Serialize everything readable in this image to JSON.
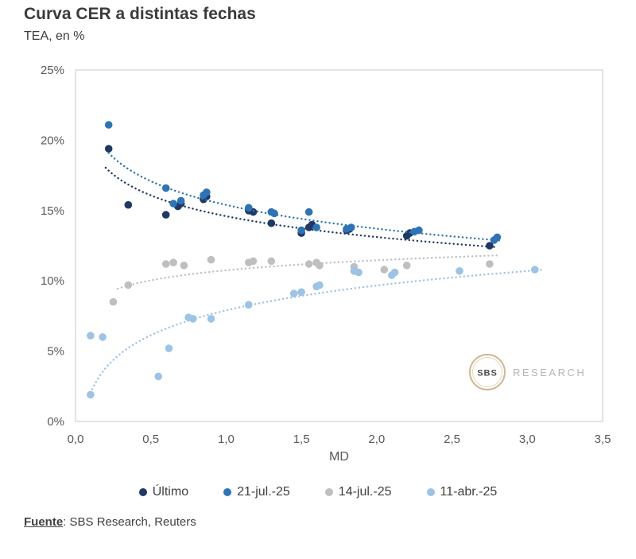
{
  "title": "Curva CER a distintas fechas",
  "subtitle": "TEA, en %",
  "footer": {
    "label": "Fuente",
    "text": ": SBS Research, Reuters"
  },
  "watermark": {
    "badge": "SBS",
    "text": "RESEARCH"
  },
  "chart_data": {
    "type": "scatter",
    "title": "Curva CER a distintas fechas",
    "subtitle": "TEA, en %",
    "xlabel": "MD",
    "ylabel": "TEA, en %",
    "xlim": [
      0,
      3.5
    ],
    "ylim": [
      0,
      25
    ],
    "grid": false,
    "legend_position": "bottom",
    "xticks": [
      {
        "value": 0.0,
        "label": "0,0"
      },
      {
        "value": 0.5,
        "label": "0,5"
      },
      {
        "value": 1.0,
        "label": "1,0"
      },
      {
        "value": 1.5,
        "label": "1,5"
      },
      {
        "value": 2.0,
        "label": "2,0"
      },
      {
        "value": 2.5,
        "label": "2,5"
      },
      {
        "value": 3.0,
        "label": "3,0"
      },
      {
        "value": 3.5,
        "label": "3,5"
      }
    ],
    "yticks": [
      {
        "value": 0,
        "label": "0%"
      },
      {
        "value": 5,
        "label": "5%"
      },
      {
        "value": 10,
        "label": "10%"
      },
      {
        "value": 15,
        "label": "15%"
      },
      {
        "value": 20,
        "label": "20%"
      },
      {
        "value": 25,
        "label": "25%"
      }
    ],
    "series": [
      {
        "id": "ultimo",
        "label": "Último",
        "color": "#1F3864",
        "points": [
          [
            0.22,
            19.4
          ],
          [
            0.35,
            15.4
          ],
          [
            0.6,
            14.7
          ],
          [
            0.68,
            15.3
          ],
          [
            0.7,
            15.5
          ],
          [
            0.85,
            15.8
          ],
          [
            0.87,
            16.0
          ],
          [
            1.15,
            15.0
          ],
          [
            1.18,
            14.9
          ],
          [
            1.3,
            14.1
          ],
          [
            1.5,
            13.4
          ],
          [
            1.55,
            13.8
          ],
          [
            1.57,
            14.0
          ],
          [
            1.8,
            13.6
          ],
          [
            1.82,
            13.7
          ],
          [
            2.2,
            13.2
          ],
          [
            2.22,
            13.4
          ],
          [
            2.75,
            12.5
          ]
        ],
        "trend": {
          "type": "log",
          "a": 14.6,
          "b": -2.14,
          "x0": 0.2,
          "x1": 2.78
        }
      },
      {
        "id": "jul21",
        "label": "21-jul.-25",
        "color": "#2E74B5",
        "points": [
          [
            0.22,
            21.1
          ],
          [
            0.6,
            16.6
          ],
          [
            0.65,
            15.5
          ],
          [
            0.7,
            15.7
          ],
          [
            0.85,
            16.1
          ],
          [
            0.87,
            16.3
          ],
          [
            1.15,
            15.2
          ],
          [
            1.3,
            14.9
          ],
          [
            1.32,
            14.8
          ],
          [
            1.5,
            13.6
          ],
          [
            1.55,
            14.9
          ],
          [
            1.6,
            13.8
          ],
          [
            1.8,
            13.7
          ],
          [
            1.83,
            13.8
          ],
          [
            2.25,
            13.5
          ],
          [
            2.28,
            13.6
          ],
          [
            2.78,
            12.9
          ],
          [
            2.8,
            13.1
          ]
        ],
        "trend": {
          "type": "log",
          "a": 15.4,
          "b": -2.44,
          "x0": 0.22,
          "x1": 2.82
        }
      },
      {
        "id": "jul14",
        "label": "14-jul.-25",
        "color": "#BFBFBF",
        "points": [
          [
            0.25,
            8.5
          ],
          [
            0.35,
            9.7
          ],
          [
            0.6,
            11.2
          ],
          [
            0.65,
            11.3
          ],
          [
            0.72,
            11.1
          ],
          [
            0.9,
            11.5
          ],
          [
            1.15,
            11.3
          ],
          [
            1.18,
            11.4
          ],
          [
            1.3,
            11.4
          ],
          [
            1.55,
            11.2
          ],
          [
            1.6,
            11.3
          ],
          [
            1.62,
            11.1
          ],
          [
            1.85,
            11.0
          ],
          [
            2.05,
            10.8
          ],
          [
            2.2,
            11.1
          ],
          [
            2.75,
            11.2
          ]
        ],
        "trend": {
          "type": "log",
          "a": 10.75,
          "b": 1.03,
          "x0": 0.28,
          "x1": 2.8
        }
      },
      {
        "id": "abr11",
        "label": "11-abr.-25",
        "color": "#9DC3E6",
        "points": [
          [
            0.1,
            1.9
          ],
          [
            0.1,
            6.1
          ],
          [
            0.18,
            6.0
          ],
          [
            0.55,
            3.2
          ],
          [
            0.62,
            5.2
          ],
          [
            0.75,
            7.4
          ],
          [
            0.78,
            7.3
          ],
          [
            0.9,
            7.3
          ],
          [
            1.15,
            8.3
          ],
          [
            1.45,
            9.1
          ],
          [
            1.5,
            9.2
          ],
          [
            1.6,
            9.6
          ],
          [
            1.62,
            9.7
          ],
          [
            1.85,
            10.7
          ],
          [
            1.88,
            10.6
          ],
          [
            2.1,
            10.4
          ],
          [
            2.12,
            10.6
          ],
          [
            2.55,
            10.7
          ],
          [
            3.05,
            10.8
          ]
        ],
        "trend": {
          "type": "log",
          "a": 7.9,
          "b": 2.55,
          "x0": 0.1,
          "x1": 3.1
        }
      }
    ]
  }
}
